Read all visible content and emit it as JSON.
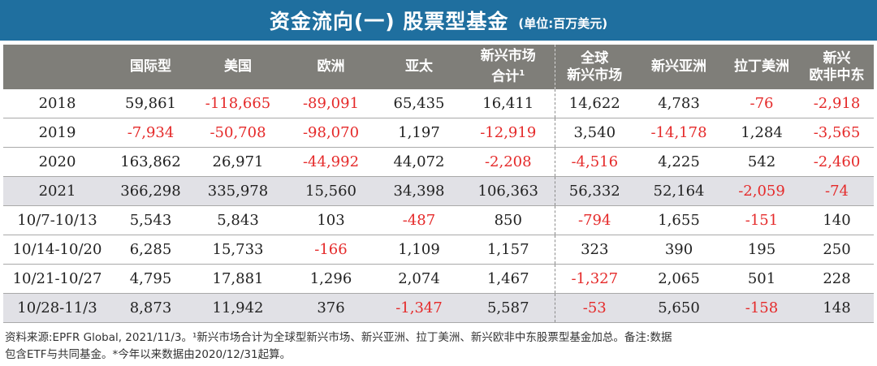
{
  "title": {
    "main": "资金流向(一) 股票型基金",
    "unit": "(单位:百万美元)"
  },
  "table": {
    "headers": [
      {
        "line1": "",
        "line2": "",
        "sup": ""
      },
      {
        "line1": "国际型",
        "line2": "",
        "sup": ""
      },
      {
        "line1": "美国",
        "line2": "",
        "sup": ""
      },
      {
        "line1": "欧洲",
        "line2": "",
        "sup": ""
      },
      {
        "line1": "亚太",
        "line2": "",
        "sup": ""
      },
      {
        "line1": "新兴市场",
        "line2": "合计",
        "sup": "1"
      },
      {
        "line1": "全球",
        "line2": "新兴市场",
        "sup": ""
      },
      {
        "line1": "新兴亚洲",
        "line2": "",
        "sup": ""
      },
      {
        "line1": "拉丁美洲",
        "line2": "",
        "sup": ""
      },
      {
        "line1": "新兴",
        "line2": "欧非中东",
        "sup": ""
      }
    ],
    "rows": [
      {
        "label": "2018",
        "shaded": false,
        "values": [
          "59,861",
          "-118,665",
          "-89,091",
          "65,435",
          "16,411",
          "14,622",
          "4,783",
          "-76",
          "-2,918"
        ]
      },
      {
        "label": "2019",
        "shaded": false,
        "values": [
          "-7,934",
          "-50,708",
          "-98,070",
          "1,197",
          "-12,919",
          "3,540",
          "-14,178",
          "1,284",
          "-3,565"
        ]
      },
      {
        "label": "2020",
        "shaded": false,
        "values": [
          "163,862",
          "26,971",
          "-44,992",
          "44,072",
          "-2,208",
          "-4,516",
          "4,225",
          "542",
          "-2,460"
        ]
      },
      {
        "label": "2021",
        "shaded": true,
        "values": [
          "366,298",
          "335,978",
          "15,560",
          "34,398",
          "106,363",
          "56,332",
          "52,164",
          "-2,059",
          "-74"
        ]
      },
      {
        "label": "10/7-10/13",
        "shaded": false,
        "values": [
          "5,543",
          "5,843",
          "103",
          "-487",
          "850",
          "-794",
          "1,655",
          "-151",
          "140"
        ]
      },
      {
        "label": "10/14-10/20",
        "shaded": false,
        "values": [
          "6,285",
          "15,733",
          "-166",
          "1,109",
          "1,157",
          "323",
          "390",
          "195",
          "250"
        ]
      },
      {
        "label": "10/21-10/27",
        "shaded": false,
        "values": [
          "4,795",
          "17,881",
          "1,296",
          "2,074",
          "1,467",
          "-1,327",
          "2,065",
          "501",
          "228"
        ]
      },
      {
        "label": "10/28-11/3",
        "shaded": true,
        "values": [
          "8,873",
          "11,942",
          "376",
          "-1,347",
          "5,587",
          "-53",
          "5,650",
          "-158",
          "148"
        ]
      }
    ]
  },
  "footnote": {
    "line1": "资料来源:EPFR Global, 2021/11/3。¹新兴市场合计为全球型新兴市场、新兴亚洲、拉丁美洲、新兴欧非中东股票型基金加总。备注:数据",
    "line2": "包含ETF与共同基金。*今年以来数据由2020/12/31起算。"
  },
  "colors": {
    "title_bg": "#1f6f9f",
    "header_bg": "#7f7e79",
    "shaded_row_bg": "#e1e1e6",
    "negative_text": "#e52a2a"
  }
}
